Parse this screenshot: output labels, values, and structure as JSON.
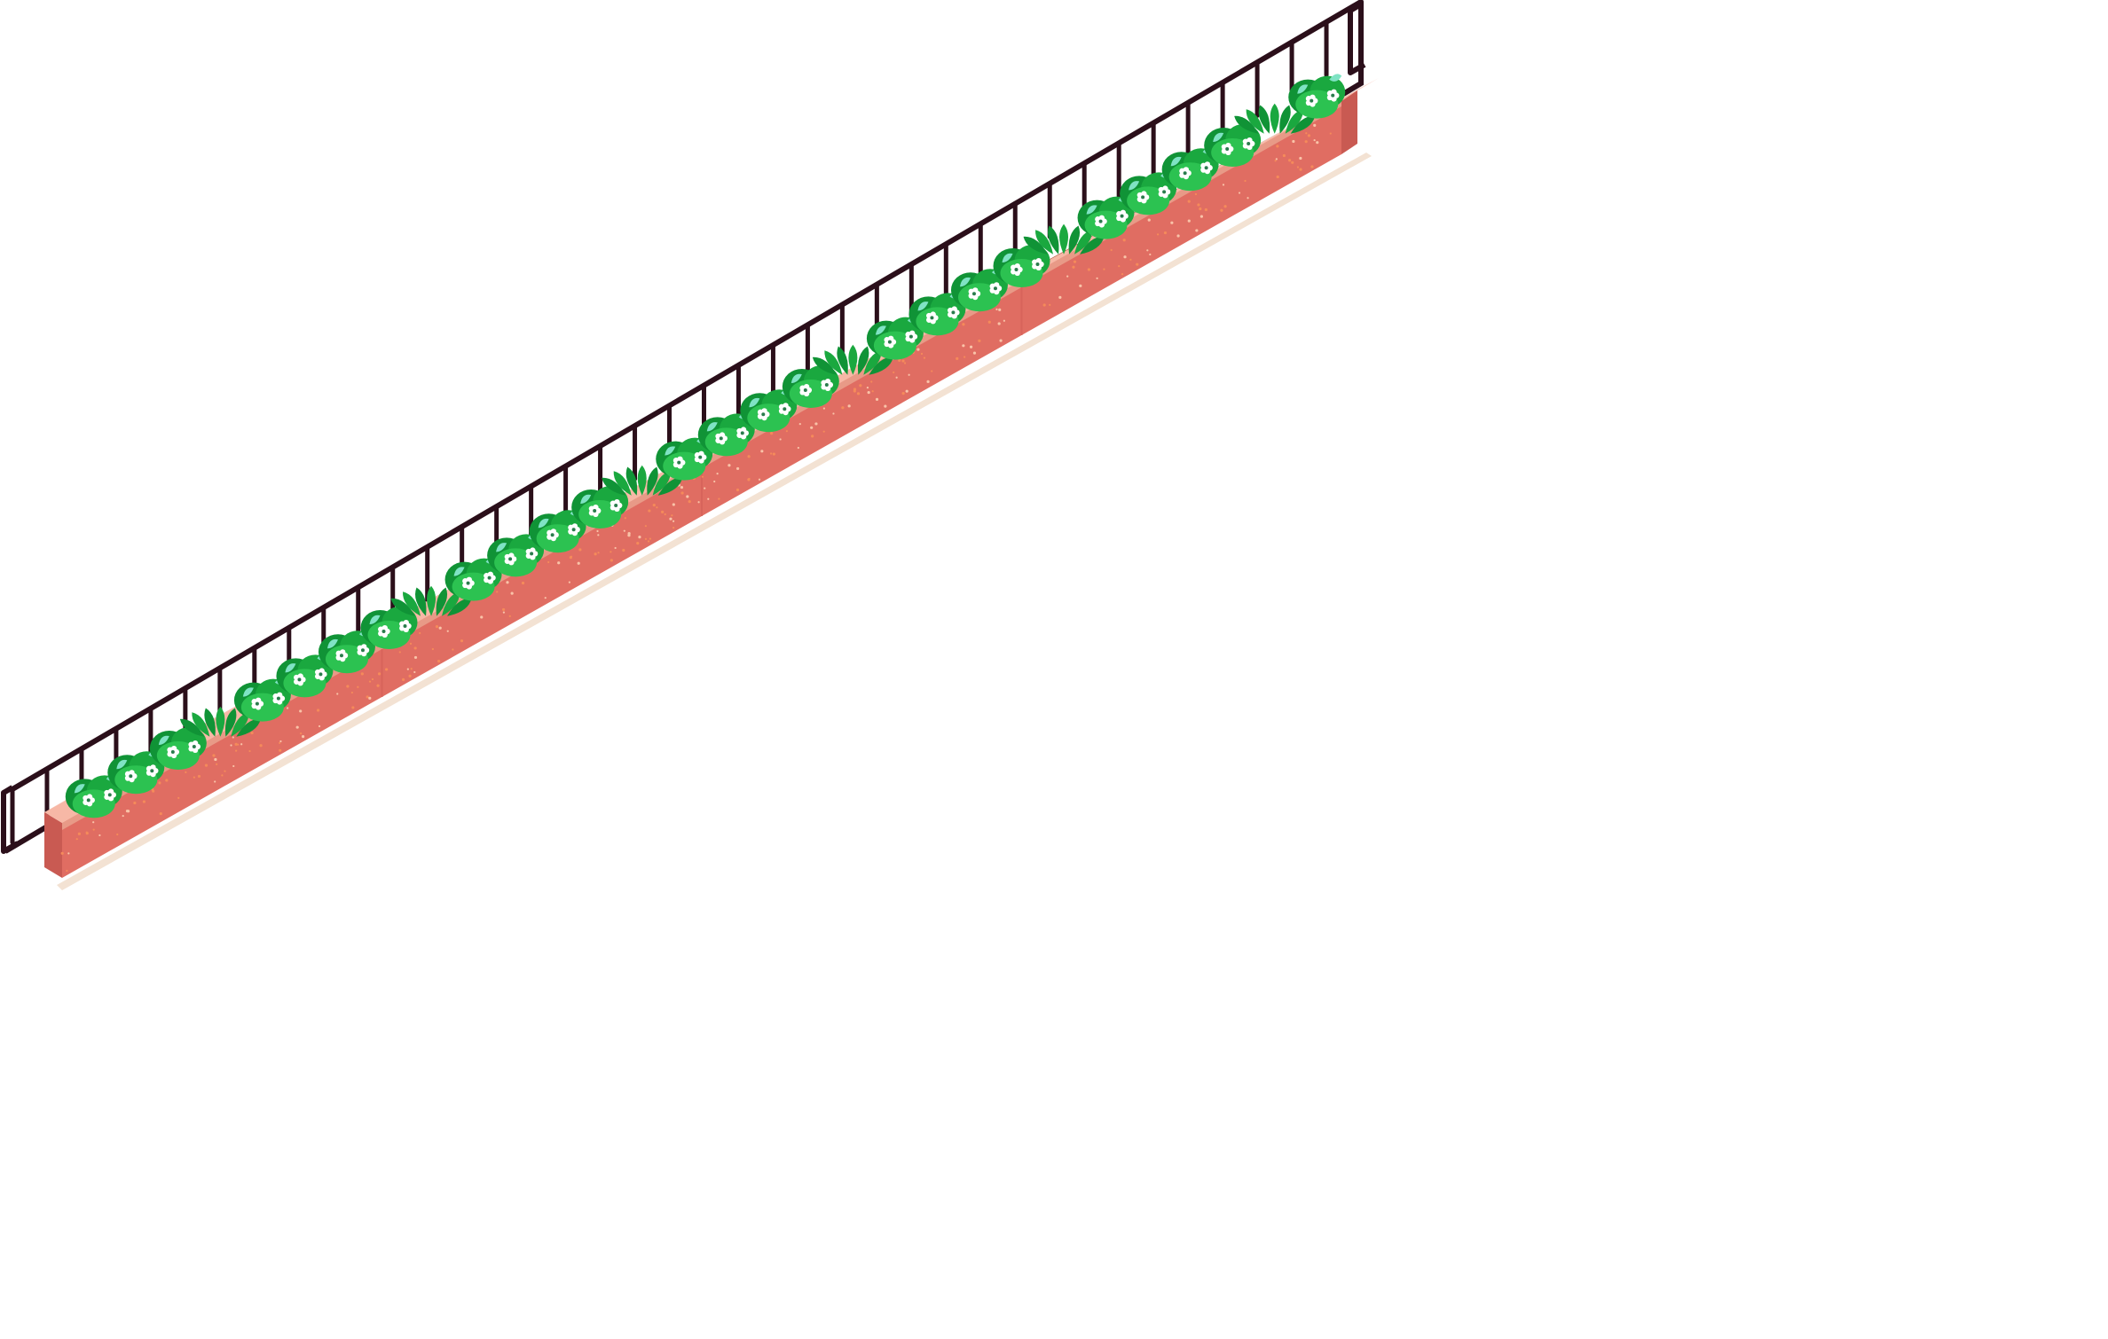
{
  "asset": {
    "kind": "isometric-planter-with-railing",
    "orientation": "diagonal-bottom-left-to-top-right",
    "planter_segments": 4,
    "railing_posts": 40,
    "plant_clusters": 30
  },
  "palette": {
    "railing": "#2b0f1a",
    "planter_front": "#e06d62",
    "planter_side": "#c95a52",
    "planter_top_rim": "#f7b8a6",
    "planter_rim_shadow": "#e89a87",
    "soil": "#7a2d22",
    "base_shadow": "#f3e2d3",
    "speckle": "#f58a5a",
    "speckle_light": "#f9c3a8",
    "foliage_dark": "#109336",
    "foliage": "#1aa83f",
    "foliage_light": "#2cc251",
    "leaf_highlight": "#7fe3c4",
    "flower_petal": "#ffffff",
    "flower_center": "#2a7d4d"
  }
}
